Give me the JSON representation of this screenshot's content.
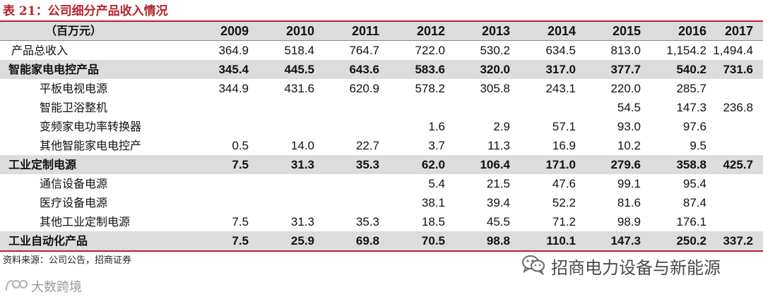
{
  "caption": "表 21：公司细分产品收入情况",
  "header": {
    "unit": "（百万元）",
    "years": [
      "2009",
      "2010",
      "2011",
      "2012",
      "2013",
      "2014",
      "2015",
      "2016",
      "2017"
    ]
  },
  "rows": [
    {
      "label": "产品总收入",
      "bold": false,
      "values": [
        "364.9",
        "518.4",
        "764.7",
        "722.0",
        "530.2",
        "634.5",
        "813.0",
        "1,154.2",
        "1,494.4"
      ]
    },
    {
      "label": "智能家电电控产品",
      "bold": true,
      "values": [
        "345.4",
        "445.5",
        "643.6",
        "583.6",
        "320.0",
        "317.0",
        "377.7",
        "540.2",
        "731.6"
      ]
    },
    {
      "label": "平板电视电源",
      "bold": false,
      "values": [
        "344.9",
        "431.6",
        "620.9",
        "578.2",
        "305.8",
        "243.1",
        "220.0",
        "285.7",
        ""
      ]
    },
    {
      "label": "智能卫浴整机",
      "bold": false,
      "values": [
        "",
        "",
        "",
        "",
        "",
        "",
        "54.5",
        "147.3",
        "236.8"
      ]
    },
    {
      "label": "变频家电功率转换器",
      "bold": false,
      "values": [
        "",
        "",
        "",
        "1.6",
        "2.9",
        "57.1",
        "93.0",
        "97.6",
        ""
      ]
    },
    {
      "label": "其他智能家电电控产",
      "bold": false,
      "values": [
        "0.5",
        "14.0",
        "22.7",
        "3.7",
        "11.3",
        "16.9",
        "10.2",
        "9.5",
        ""
      ]
    },
    {
      "label": "工业定制电源",
      "bold": true,
      "values": [
        "7.5",
        "31.3",
        "35.3",
        "62.0",
        "106.4",
        "171.0",
        "279.6",
        "358.8",
        "425.7"
      ]
    },
    {
      "label": "通信设备电源",
      "bold": false,
      "values": [
        "",
        "",
        "",
        "5.4",
        "21.5",
        "47.6",
        "99.1",
        "95.4",
        ""
      ]
    },
    {
      "label": "医疗设备电源",
      "bold": false,
      "values": [
        "",
        "",
        "",
        "38.1",
        "39.4",
        "52.2",
        "81.6",
        "87.4",
        ""
      ]
    },
    {
      "label": "其他工业定制电源",
      "bold": false,
      "values": [
        "7.5",
        "31.3",
        "35.3",
        "18.5",
        "45.5",
        "71.2",
        "98.9",
        "176.1",
        ""
      ]
    },
    {
      "label": "工业自动化产品",
      "bold": true,
      "values": [
        "7.5",
        "25.9",
        "69.8",
        "70.5",
        "98.8",
        "110.1",
        "147.3",
        "250.2",
        "337.2"
      ]
    }
  ],
  "source": "资料来源：公司公告，招商证券",
  "watermark_right": "招商电力设备与新能源",
  "watermark_left": "大数跨境",
  "colors": {
    "accent": "#b4242d",
    "band": "#dcdcdc"
  },
  "icons": {
    "right": "wechat-icon",
    "left": "brand-logo-icon"
  }
}
